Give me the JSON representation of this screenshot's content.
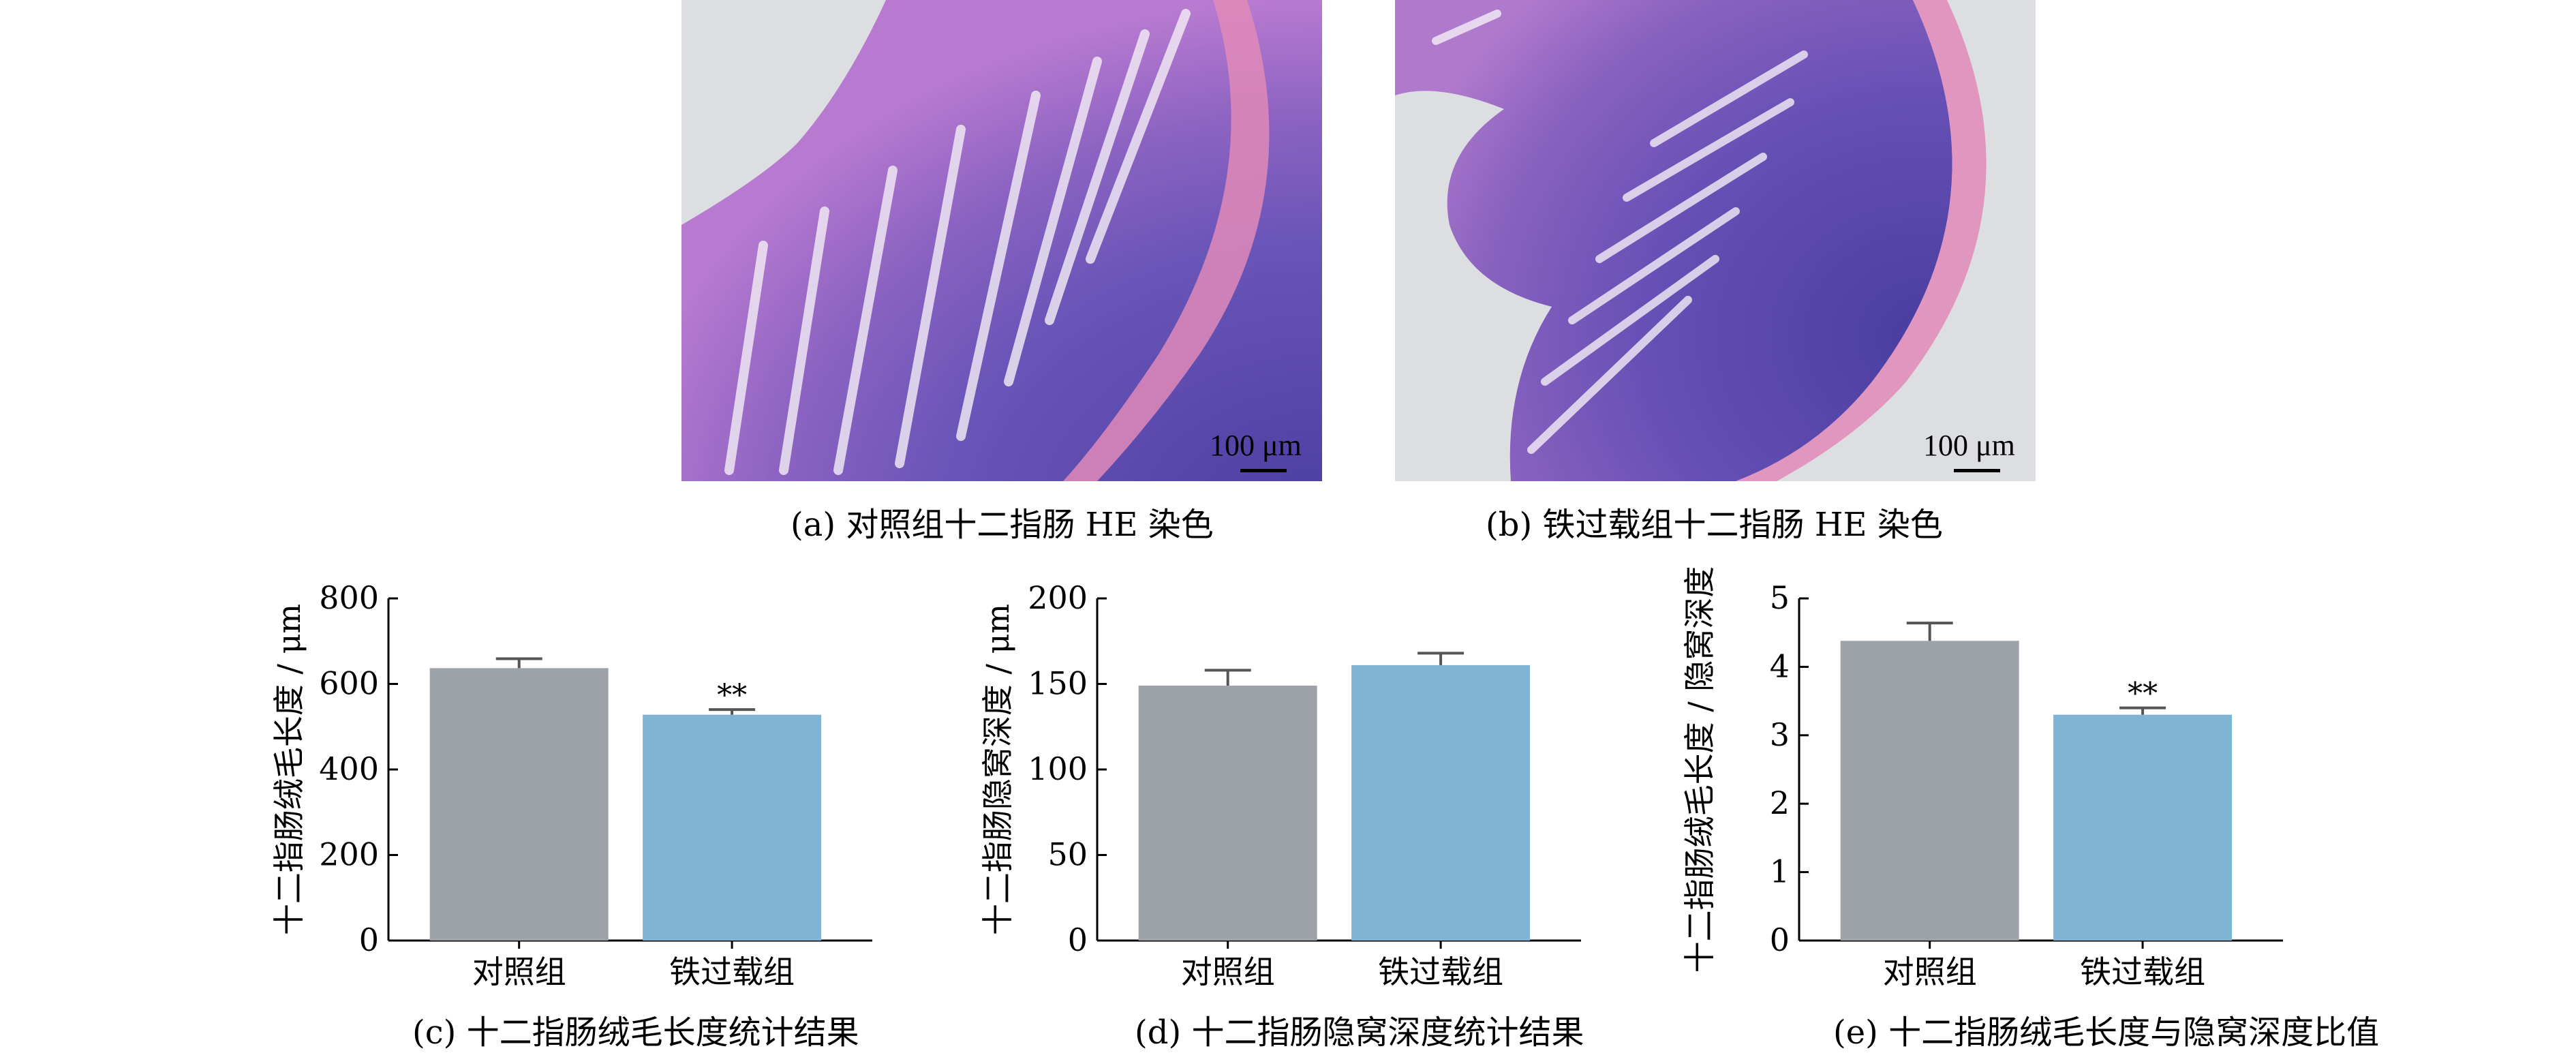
{
  "images": [
    {
      "scale_label": "100 μm",
      "caption": "(a) 对照组十二指肠 HE 染色"
    },
    {
      "scale_label": "100 μm",
      "caption": "(b) 铁过载组十二指肠 HE 染色"
    }
  ],
  "colors": {
    "control": "#9ea3aa",
    "iron": "#80b4d5"
  },
  "chart_data": [
    {
      "type": "bar",
      "caption": "(c) 十二指肠绒毛长度统计结果",
      "ylabel": "十二指肠绒毛长度 / μm",
      "categories": [
        "对照组",
        "铁过载组"
      ],
      "values": [
        637,
        528
      ],
      "errors": [
        22,
        12
      ],
      "significance": [
        "",
        "**"
      ],
      "ylim": [
        0,
        800
      ],
      "yticks": [
        0,
        200,
        400,
        600,
        800
      ]
    },
    {
      "type": "bar",
      "caption": "(d) 十二指肠隐窝深度统计结果",
      "ylabel": "十二指肠隐窝深度 / μm",
      "categories": [
        "对照组",
        "铁过载组"
      ],
      "values": [
        149,
        161
      ],
      "errors": [
        9,
        7
      ],
      "significance": [
        "",
        ""
      ],
      "ylim": [
        0,
        200
      ],
      "yticks": [
        0,
        50,
        100,
        150,
        200
      ]
    },
    {
      "type": "bar",
      "caption": "(e) 十二指肠绒毛长度与隐窝深度比值",
      "ylabel": "十二指肠绒毛长度 / 隐窝深度",
      "categories": [
        "对照组",
        "铁过载组"
      ],
      "values": [
        4.38,
        3.3
      ],
      "errors": [
        0.26,
        0.1
      ],
      "significance": [
        "",
        "**"
      ],
      "ylim": [
        0,
        5
      ],
      "yticks": [
        0,
        1,
        2,
        3,
        4,
        5
      ]
    }
  ]
}
